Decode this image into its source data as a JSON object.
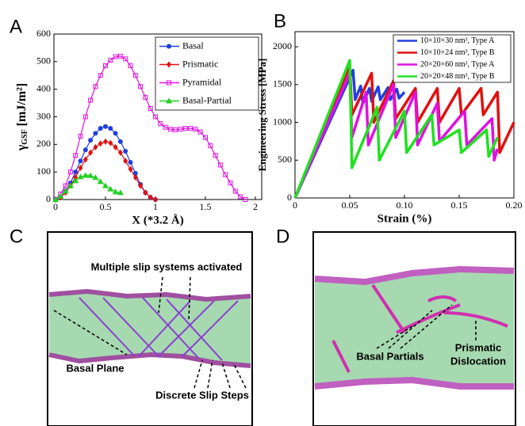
{
  "chart_data": [
    {
      "type": "line",
      "panel": "A",
      "xlabel": "X (*3.2 Å)",
      "ylabel": [
        "γ",
        "GSF",
        " [mJ/m²]"
      ],
      "xlim": [
        0,
        2
      ],
      "ylim": [
        0,
        600
      ],
      "xticks": [
        0,
        0.5,
        1,
        1.5,
        2
      ],
      "yticks": [
        0,
        100,
        200,
        300,
        400,
        500,
        600
      ],
      "markers": true,
      "legend": "upper right",
      "series": [
        {
          "name": "Basal",
          "color": "#1f3fe0",
          "marker": "circle",
          "x": [
            0,
            0.05,
            0.1,
            0.15,
            0.2,
            0.25,
            0.3,
            0.35,
            0.4,
            0.45,
            0.5,
            0.55,
            0.6,
            0.65,
            0.7,
            0.75,
            0.8,
            0.85,
            0.9,
            0.95,
            1.0
          ],
          "values": [
            0,
            10,
            30,
            60,
            100,
            140,
            180,
            215,
            240,
            258,
            265,
            258,
            240,
            210,
            175,
            135,
            95,
            55,
            25,
            8,
            0
          ]
        },
        {
          "name": "Prismatic",
          "color": "#e01010",
          "marker": "diamond",
          "x": [
            0,
            0.05,
            0.1,
            0.15,
            0.2,
            0.25,
            0.3,
            0.35,
            0.4,
            0.45,
            0.5,
            0.55,
            0.6,
            0.65,
            0.7,
            0.75,
            0.8,
            0.85,
            0.9,
            0.95,
            1.0
          ],
          "values": [
            0,
            8,
            25,
            50,
            80,
            115,
            145,
            170,
            190,
            203,
            210,
            205,
            190,
            170,
            140,
            110,
            80,
            50,
            25,
            8,
            0
          ]
        },
        {
          "name": "Pyramidal",
          "color": "#e010e0",
          "marker": "square",
          "x": [
            0,
            0.05,
            0.1,
            0.15,
            0.2,
            0.25,
            0.3,
            0.35,
            0.4,
            0.45,
            0.5,
            0.55,
            0.6,
            0.65,
            0.7,
            0.75,
            0.8,
            0.85,
            0.9,
            0.95,
            1.0,
            1.05,
            1.1,
            1.15,
            1.2,
            1.25,
            1.3,
            1.35,
            1.4,
            1.45,
            1.5,
            1.55,
            1.6,
            1.65,
            1.7,
            1.75,
            1.8,
            1.85,
            1.9
          ],
          "values": [
            0,
            20,
            50,
            100,
            160,
            230,
            300,
            360,
            410,
            450,
            485,
            505,
            518,
            520,
            510,
            485,
            450,
            410,
            370,
            330,
            300,
            275,
            262,
            255,
            253,
            255,
            258,
            258,
            255,
            245,
            225,
            195,
            160,
            125,
            90,
            60,
            30,
            10,
            0
          ]
        },
        {
          "name": "Basal-Partial",
          "color": "#20d020",
          "marker": "triangle",
          "x": [
            0,
            0.05,
            0.1,
            0.15,
            0.2,
            0.25,
            0.3,
            0.35,
            0.4,
            0.45,
            0.5,
            0.55,
            0.6,
            0.65
          ],
          "values": [
            0,
            12,
            30,
            50,
            68,
            82,
            88,
            87,
            80,
            65,
            50,
            38,
            28,
            25
          ]
        }
      ]
    },
    {
      "type": "line",
      "panel": "B",
      "xlabel": "Strain (%)",
      "ylabel": "Engineering Stress [MPa]",
      "xlim": [
        0,
        0.2
      ],
      "ylim": [
        0,
        2200
      ],
      "xticks": [
        0,
        0.05,
        {
          "value": 0.1,
          "label": "0.10"
        },
        0.15,
        {
          "value": 0.2,
          "label": "0.20"
        }
      ],
      "yticks": [
        0,
        500,
        1000,
        1500,
        2000
      ],
      "markers": false,
      "legend": "upper right",
      "series": [
        {
          "name": "10×10×30 nm³, Type A",
          "color": "#1f3fe0",
          "x": [
            0,
            0.053,
            0.055,
            0.06,
            0.062,
            0.068,
            0.07,
            0.076,
            0.078,
            0.085,
            0.087,
            0.093,
            0.095,
            0.1
          ],
          "values": [
            0,
            1690,
            1300,
            1480,
            1250,
            1450,
            1280,
            1470,
            1300,
            1460,
            1300,
            1440,
            1320,
            1400
          ]
        },
        {
          "name": "10×10×24 nm³, Type B",
          "color": "#e01010",
          "x": [
            0,
            0.05,
            0.052,
            0.07,
            0.072,
            0.09,
            0.092,
            0.11,
            0.112,
            0.13,
            0.132,
            0.15,
            0.152,
            0.17,
            0.172,
            0.185,
            0.187,
            0.2
          ],
          "values": [
            0,
            1750,
            1100,
            1650,
            1000,
            1550,
            1050,
            1450,
            1000,
            1450,
            1000,
            1450,
            1100,
            1450,
            1100,
            1400,
            600,
            1000
          ]
        },
        {
          "name": "20×20×60 nm³, Type A",
          "color": "#e010e0",
          "x": [
            0,
            0.05,
            0.052,
            0.065,
            0.067,
            0.09,
            0.092,
            0.11,
            0.112,
            0.13,
            0.132,
            0.155,
            0.157,
            0.18,
            0.182,
            0.185
          ],
          "values": [
            0,
            1650,
            800,
            1400,
            700,
            1500,
            800,
            1400,
            700,
            1250,
            750,
            1150,
            700,
            1050,
            500,
            650
          ]
        },
        {
          "name": "20×20×48 nm³, Type B",
          "color": "#20e020",
          "x": [
            0,
            0.05,
            0.052,
            0.075,
            0.077,
            0.1,
            0.102,
            0.125,
            0.127,
            0.15,
            0.152,
            0.175,
            0.177,
            0.185
          ],
          "values": [
            0,
            1820,
            400,
            1200,
            500,
            1150,
            600,
            1100,
            700,
            900,
            600,
            900,
            550,
            800
          ]
        }
      ]
    }
  ],
  "panels": {
    "C": {
      "letter": "C",
      "annotations": [
        "Multiple slip systems activated",
        "Basal Plane",
        "Discrete Slip Steps"
      ]
    },
    "D": {
      "letter": "D",
      "annotations": [
        "Basal Partials",
        "Prismatic",
        "Dislocation"
      ]
    }
  }
}
